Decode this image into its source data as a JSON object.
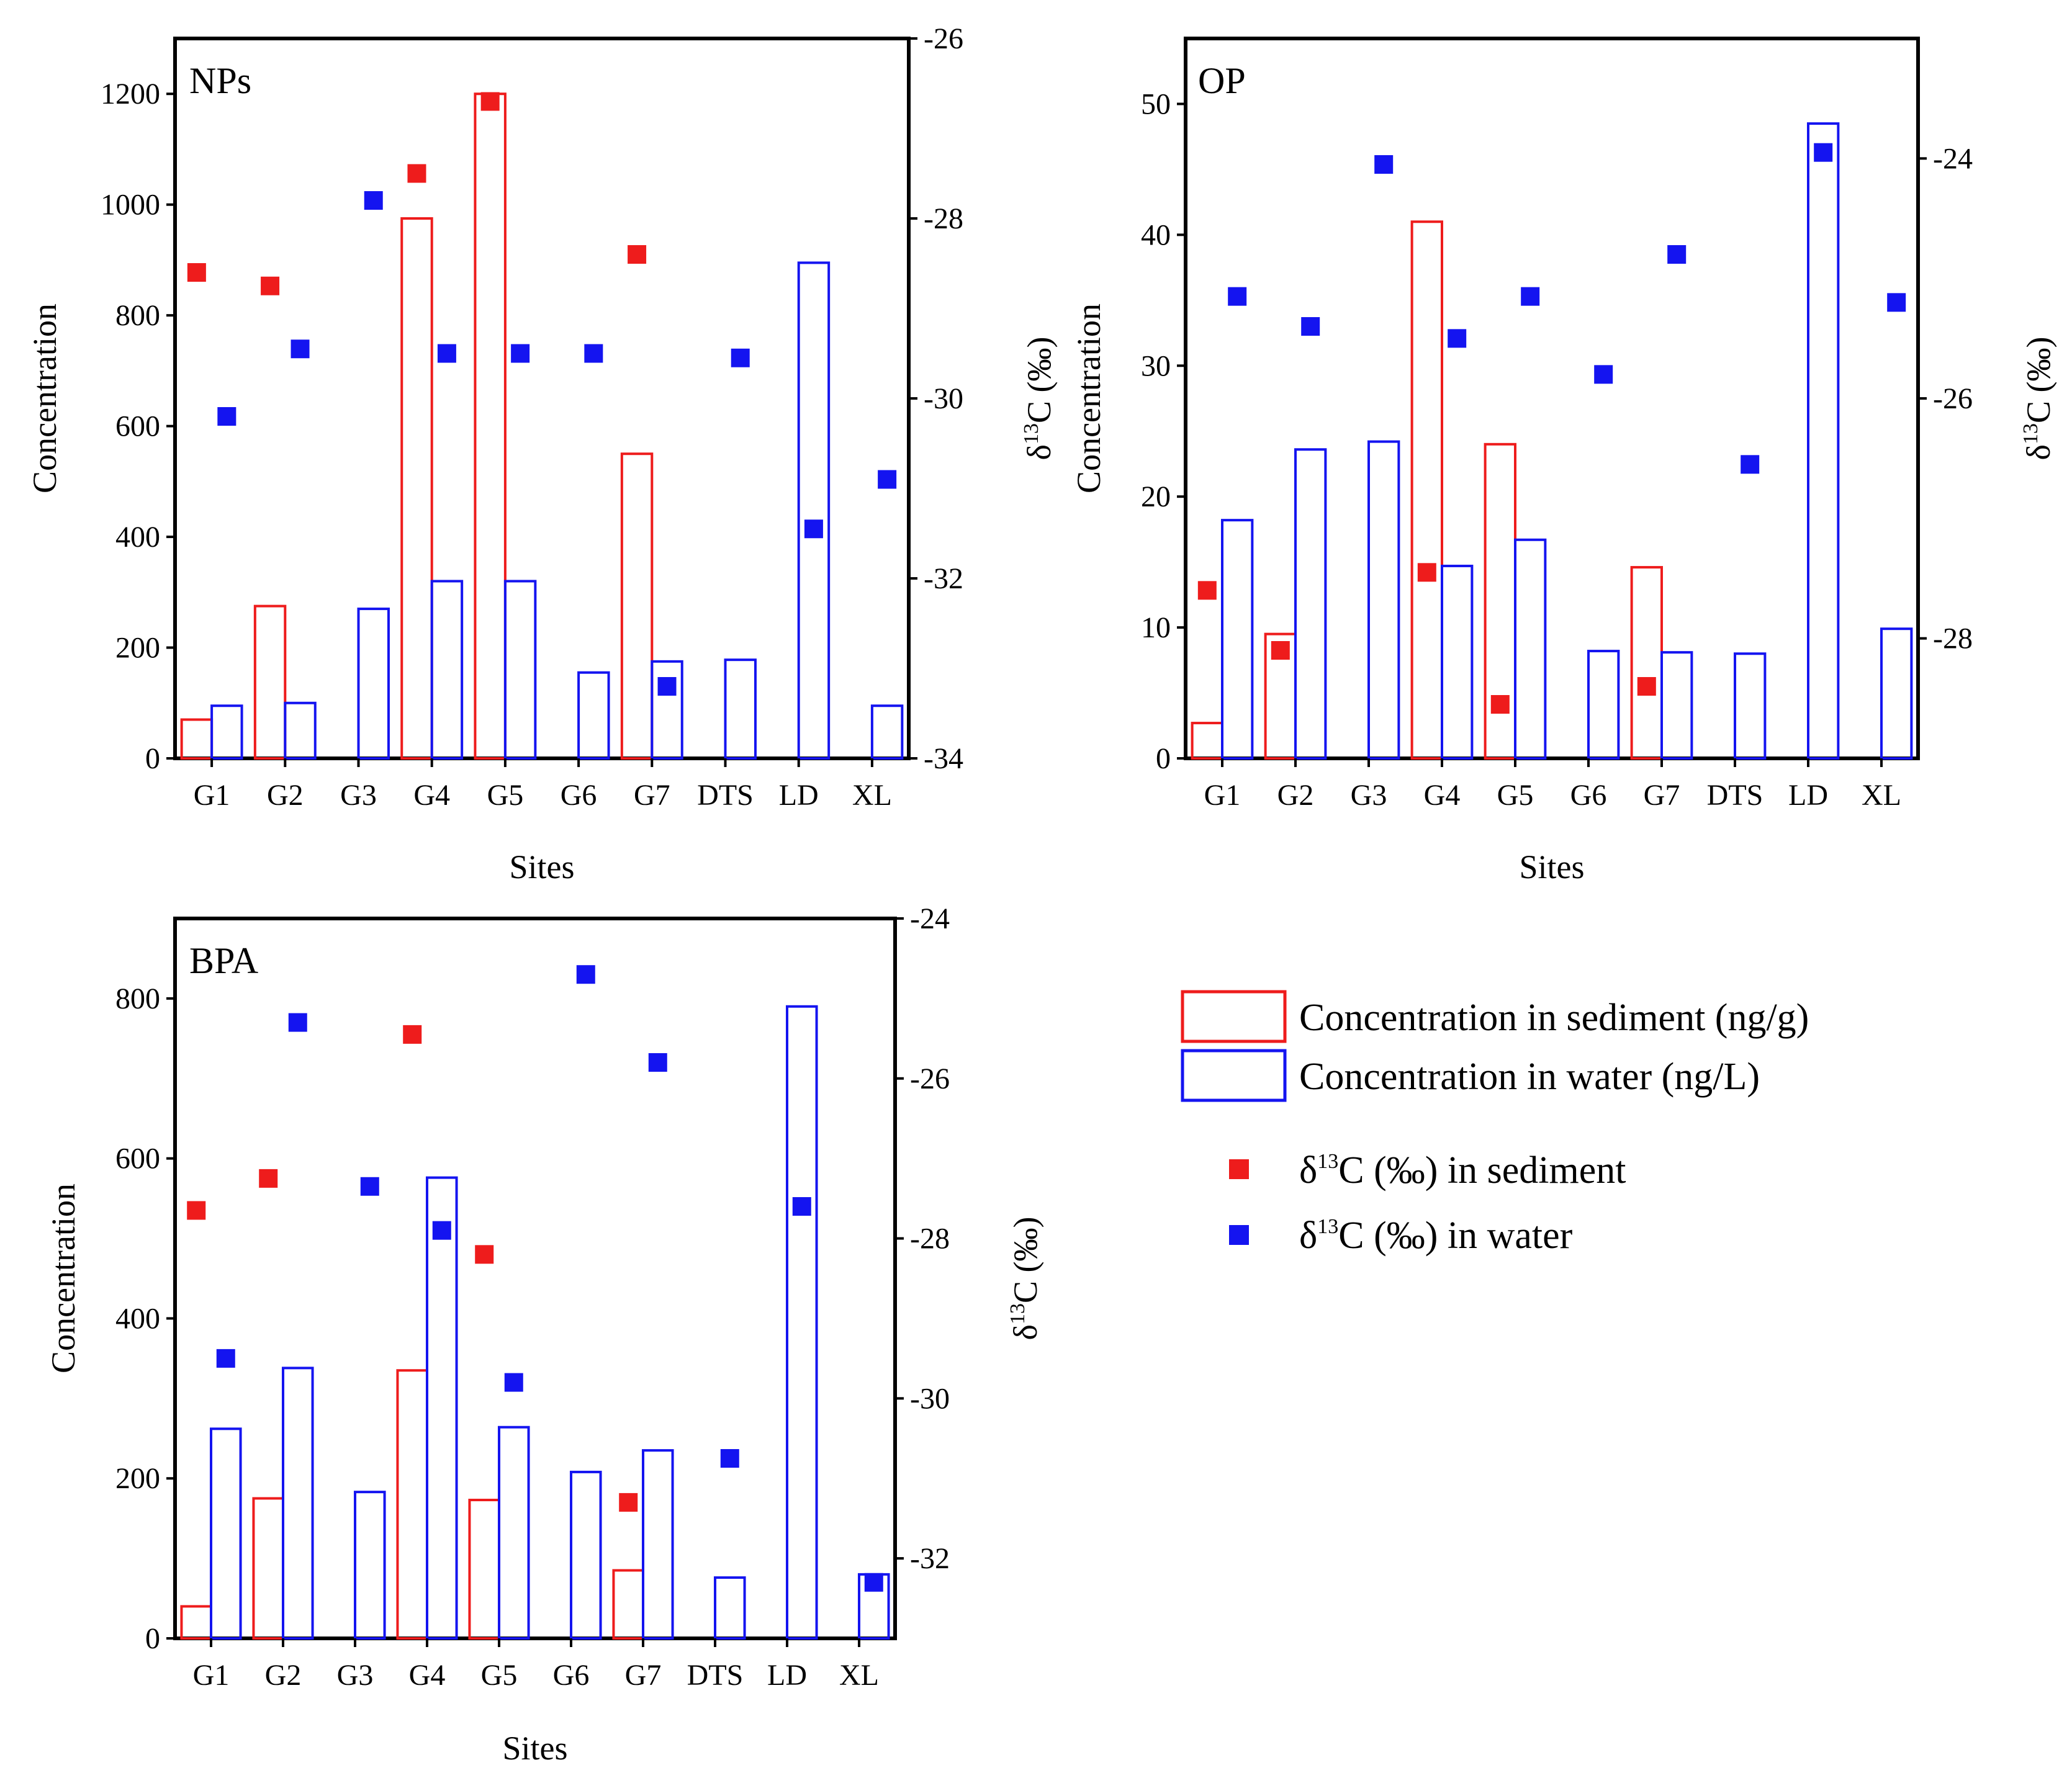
{
  "x_axis_title": "Sites",
  "left_axis_title": "Concentration",
  "right_axis_title": {
    "delta": "δ",
    "sup": "13",
    "rest": "C (‰)"
  },
  "colors": {
    "sediment": "#ee1c1c",
    "water": "#1414f0",
    "axis": "#000000"
  },
  "legend": {
    "sediment_conc": "Concentration in sediment (ng/g)",
    "water_conc": "Concentration in water (ng/L)",
    "delta_sed": {
      "prefix": "δ",
      "sup": "13",
      "suffix": "C (‰) in sediment"
    },
    "delta_water": {
      "prefix": "δ",
      "sup": "13",
      "suffix": "C (‰) in water"
    }
  },
  "chart_data": [
    {
      "type": "bar",
      "title": "NPs",
      "xlabel": "Sites",
      "ylabel": "Concentration",
      "y2label": "δ13C (‰)",
      "categories": [
        "G1",
        "G2",
        "G3",
        "G4",
        "G5",
        "G6",
        "G7",
        "DTS",
        "LD",
        "XL"
      ],
      "ylim": [
        0,
        1300
      ],
      "yticks": [
        0,
        200,
        400,
        600,
        800,
        1000,
        1200
      ],
      "y2lim": [
        -34,
        -26
      ],
      "y2ticks": [
        -34,
        -32,
        -30,
        -28,
        -26
      ],
      "series": [
        {
          "name": "Concentration in sediment (ng/g)",
          "kind": "bar",
          "axis": "left",
          "values": [
            70,
            275,
            null,
            975,
            1200,
            null,
            550,
            null,
            null,
            null
          ]
        },
        {
          "name": "Concentration in water (ng/L)",
          "kind": "bar",
          "axis": "left",
          "values": [
            95,
            100,
            270,
            320,
            320,
            155,
            175,
            178,
            895,
            95
          ]
        },
        {
          "name": "δ13C (‰) in sediment",
          "kind": "scatter",
          "axis": "right",
          "values": [
            -28.6,
            -28.75,
            null,
            -27.5,
            -26.7,
            null,
            -28.4,
            null,
            null,
            null
          ]
        },
        {
          "name": "δ13C (‰) in water",
          "kind": "scatter",
          "axis": "right",
          "values": [
            -30.2,
            -29.45,
            -27.8,
            -29.5,
            -29.5,
            -29.5,
            -33.2,
            -29.55,
            -31.45,
            -30.9
          ]
        }
      ]
    },
    {
      "type": "bar",
      "title": "OP",
      "xlabel": "Sites",
      "ylabel": "Concentration",
      "y2label": "δ13C (‰)",
      "categories": [
        "G1",
        "G2",
        "G3",
        "G4",
        "G5",
        "G6",
        "G7",
        "DTS",
        "LD",
        "XL"
      ],
      "ylim": [
        0,
        55
      ],
      "yticks": [
        0,
        10,
        20,
        30,
        40,
        50
      ],
      "y2lim": [
        -29,
        -23
      ],
      "y2ticks": [
        -28,
        -26,
        -24
      ],
      "series": [
        {
          "name": "Concentration in sediment (ng/g)",
          "kind": "bar",
          "axis": "left",
          "values": [
            2.7,
            9.5,
            null,
            41,
            24,
            null,
            14.6,
            null,
            null,
            null
          ]
        },
        {
          "name": "Concentration in water (ng/L)",
          "kind": "bar",
          "axis": "left",
          "values": [
            18.2,
            23.6,
            24.2,
            14.7,
            16.7,
            8.2,
            8.1,
            8.0,
            48.5,
            9.9
          ]
        },
        {
          "name": "δ13C (‰) in sediment",
          "kind": "scatter",
          "axis": "right",
          "values": [
            -27.6,
            -28.1,
            null,
            -27.45,
            -28.55,
            null,
            -28.4,
            null,
            null,
            null
          ]
        },
        {
          "name": "δ13C (‰) in water",
          "kind": "scatter",
          "axis": "right",
          "values": [
            -25.15,
            -25.4,
            -24.05,
            -25.5,
            -25.15,
            -25.8,
            -24.8,
            -26.55,
            -23.95,
            -25.2
          ]
        }
      ]
    },
    {
      "type": "bar",
      "title": "BPA",
      "xlabel": "Sites",
      "ylabel": "Concentration",
      "y2label": "δ13C (‰)",
      "categories": [
        "G1",
        "G2",
        "G3",
        "G4",
        "G5",
        "G6",
        "G7",
        "DTS",
        "LD",
        "XL"
      ],
      "ylim": [
        0,
        900
      ],
      "yticks": [
        0,
        200,
        400,
        600,
        800
      ],
      "y2lim": [
        -33,
        -24
      ],
      "y2ticks": [
        -32,
        -30,
        -28,
        -26,
        -24
      ],
      "series": [
        {
          "name": "Concentration in sediment (ng/g)",
          "kind": "bar",
          "axis": "left",
          "values": [
            40,
            175,
            null,
            335,
            173,
            null,
            85,
            null,
            null,
            null
          ]
        },
        {
          "name": "Concentration in water (ng/L)",
          "kind": "bar",
          "axis": "left",
          "values": [
            262,
            338,
            183,
            576,
            264,
            208,
            235,
            76,
            790,
            80
          ]
        },
        {
          "name": "δ13C (‰) in sediment",
          "kind": "scatter",
          "axis": "right",
          "values": [
            -27.65,
            -27.25,
            null,
            -25.45,
            -28.2,
            null,
            -31.3,
            null,
            null,
            null
          ]
        },
        {
          "name": "δ13C (‰) in water",
          "kind": "scatter",
          "axis": "right",
          "values": [
            -29.5,
            -25.3,
            -27.35,
            -27.9,
            -29.8,
            -24.7,
            -25.8,
            -30.75,
            -27.6,
            -32.3
          ]
        }
      ]
    }
  ]
}
